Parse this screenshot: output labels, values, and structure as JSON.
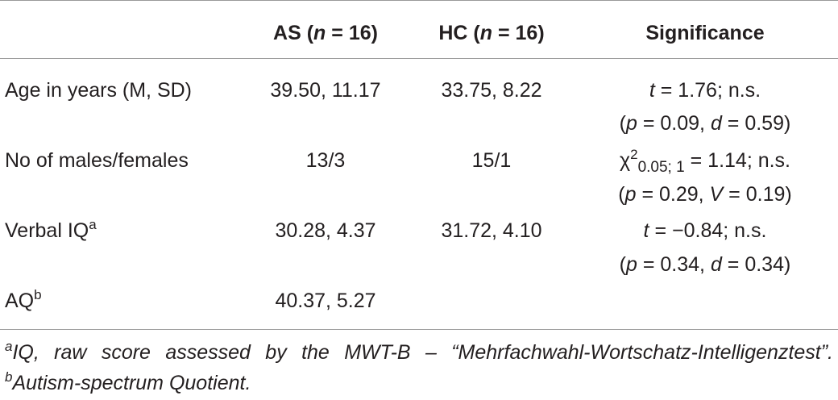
{
  "header": {
    "col_as_prefix": "AS (",
    "col_as_n": "n",
    "col_as_suffix": " = 16)",
    "col_hc_prefix": "HC (",
    "col_hc_n": "n",
    "col_hc_suffix": " = 16)",
    "col_sig": "Significance"
  },
  "rows": [
    {
      "label": "Age in years (M, SD)",
      "as": "39.50, 11.17",
      "hc": "33.75, 8.22",
      "stat_sym": "t",
      "stat_rest": " = 1.76; n.s.",
      "p_open": "(",
      "p_sym": "p",
      "p_val": " = 0.09, ",
      "eff_sym": "d",
      "eff_val": " = 0.59)"
    },
    {
      "label": "No of males/females",
      "as": "13/3",
      "hc": "15/1",
      "stat_sym": "χ",
      "stat_sup": "2",
      "stat_sub": "0.05; 1",
      "stat_rest": " = 1.14; n.s.",
      "p_open": "(",
      "p_sym": "p",
      "p_val": " = 0.29, ",
      "eff_sym": "V",
      "eff_val": " = 0.19)"
    },
    {
      "label": "Verbal IQ",
      "label_sup": "a",
      "as": "30.28, 4.37",
      "hc": "31.72, 4.10",
      "stat_sym": "t",
      "stat_rest": " = −0.84; n.s.",
      "p_open": "(",
      "p_sym": "p",
      "p_val": " = 0.34, ",
      "eff_sym": "d",
      "eff_val": " = 0.34)"
    },
    {
      "label": "AQ",
      "label_sup": "b",
      "as": "40.37, 5.27"
    }
  ],
  "footnote": {
    "a_marker": "a",
    "a_text": "IQ, raw score assessed by the MWT-B – “Mehrfachwahl-Wortschatz-Intelligenztest”. ",
    "b_marker": "b",
    "b_text": "Autism-spectrum Quotient."
  }
}
